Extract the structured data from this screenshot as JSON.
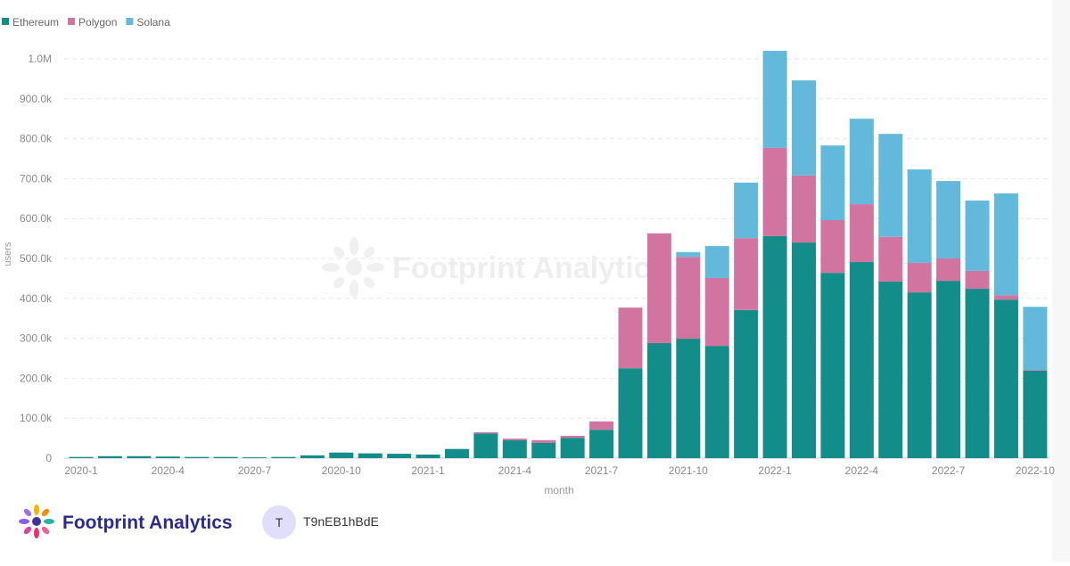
{
  "chart_data": {
    "type": "stacked-bar",
    "x_label": "month",
    "y_label": "users",
    "watermark": "Footprint Analytics",
    "categories": [
      "2020-1",
      null,
      null,
      "2020-4",
      null,
      null,
      "2020-7",
      null,
      null,
      "2020-10",
      null,
      null,
      "2021-1",
      null,
      null,
      "2021-4",
      null,
      null,
      "2021-7",
      null,
      null,
      "2021-10",
      null,
      null,
      "2022-1",
      null,
      null,
      "2022-4",
      null,
      null,
      "2022-7",
      null,
      null,
      "2022-10"
    ],
    "series": [
      {
        "name": "Ethereum",
        "color": "#138d8a",
        "values": [
          3000,
          5000,
          5000,
          4000,
          3000,
          3000,
          2000,
          3000,
          7000,
          14000,
          12000,
          11000,
          9000,
          23000,
          62000,
          45000,
          38000,
          51000,
          71000,
          225000,
          288000,
          299000,
          281000,
          371000,
          556000,
          540000,
          464000,
          491000,
          442000,
          415000,
          444000,
          424000,
          397000,
          219000
        ]
      },
      {
        "name": "Polygon",
        "color": "#d175a0",
        "values": [
          0,
          0,
          0,
          0,
          0,
          0,
          0,
          0,
          0,
          0,
          0,
          0,
          0,
          0,
          3000,
          4000,
          7000,
          5000,
          21000,
          152000,
          275000,
          205000,
          170000,
          180000,
          221000,
          168000,
          132000,
          145000,
          112000,
          74000,
          56000,
          45000,
          11000,
          2000
        ]
      },
      {
        "name": "Solana",
        "color": "#62b9dc",
        "values": [
          0,
          0,
          0,
          0,
          0,
          0,
          0,
          0,
          0,
          0,
          0,
          0,
          0,
          0,
          0,
          0,
          0,
          0,
          0,
          0,
          0,
          12000,
          80000,
          139000,
          243000,
          238000,
          187000,
          214000,
          258000,
          234000,
          194000,
          176000,
          255000,
          158000
        ]
      }
    ],
    "ylim": [
      0,
      1040000
    ],
    "yticks": [
      0,
      {
        "value": 100000,
        "label": "100.0k"
      },
      {
        "value": 200000,
        "label": "200.0k"
      },
      {
        "value": 300000,
        "label": "300.0k"
      },
      {
        "value": 400000,
        "label": "400.0k"
      },
      {
        "value": 500000,
        "label": "500.0k"
      },
      {
        "value": 600000,
        "label": "600.0k"
      },
      {
        "value": 700000,
        "label": "700.0k"
      },
      {
        "value": 800000,
        "label": "800.0k"
      },
      {
        "value": 900000,
        "label": "900.0k"
      },
      {
        "value": 1000000,
        "label": "1.0M"
      }
    ],
    "grid": true,
    "legend": "top-left"
  },
  "footer": {
    "brand": "Footprint Analytics",
    "avatar": "T",
    "user": "T9nEB1hBdE"
  }
}
